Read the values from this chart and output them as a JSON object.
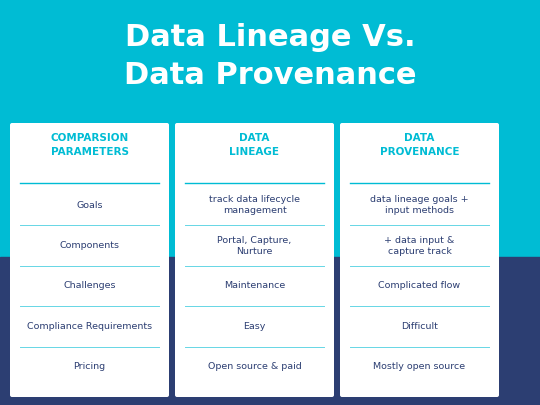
{
  "title_line1": "Data Lineage Vs.",
  "title_line2": "Data Provenance",
  "title_color": "#ffffff",
  "title_fontsize": 22,
  "bg_top_color": "#00BCD4",
  "bg_bottom_color": "#2C3E72",
  "card_bg_color": "#ffffff",
  "header_text_color": "#00BCD4",
  "body_text_color": "#2C3E72",
  "divider_color": "#00BCD4",
  "columns": [
    {
      "header": "COMPARSION\nPARAMETERS",
      "rows": [
        "Goals",
        "Components",
        "Challenges",
        "Compliance Requirements",
        "Pricing"
      ]
    },
    {
      "header": "DATA\nLINEAGE",
      "rows": [
        "track data lifecycle\nmanagement",
        "Portal, Capture,\nNurture",
        "Maintenance",
        "Easy",
        "Open source & paid"
      ]
    },
    {
      "header": "DATA\nPROVENANCE",
      "rows": [
        "data lineage goals +\ninput methods",
        "+ data input &\ncapture track",
        "Complicated flow",
        "Difficult",
        "Mostly open source"
      ]
    }
  ]
}
